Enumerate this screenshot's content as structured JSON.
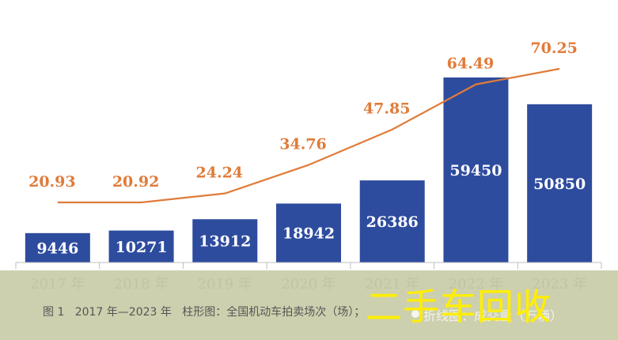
{
  "chart_data": {
    "type": "bar+line",
    "categories": [
      "2017 年",
      "2018 年",
      "2019 年",
      "2020 年",
      "2021 年",
      "2022 年",
      "2023 年"
    ],
    "series": [
      {
        "kind": "bar",
        "values": [
          9446,
          10271,
          13912,
          18942,
          26386,
          59450,
          50850
        ]
      },
      {
        "kind": "line",
        "values": [
          20.93,
          20.92,
          24.24,
          34.76,
          47.85,
          64.49,
          70.25
        ]
      }
    ],
    "colors": {
      "bar": "#2e4c9e",
      "line": "#e07b39",
      "bar_label": "#ffffff",
      "axis": "#bfbfbf",
      "tick": "#666666"
    }
  },
  "caption": "图 1   2017 年—2023 年   柱形图：全国机动车拍卖场次（场）；",
  "watermark": {
    "large": "二手车回收",
    "small": "折线图：成交量（万辆）"
  }
}
